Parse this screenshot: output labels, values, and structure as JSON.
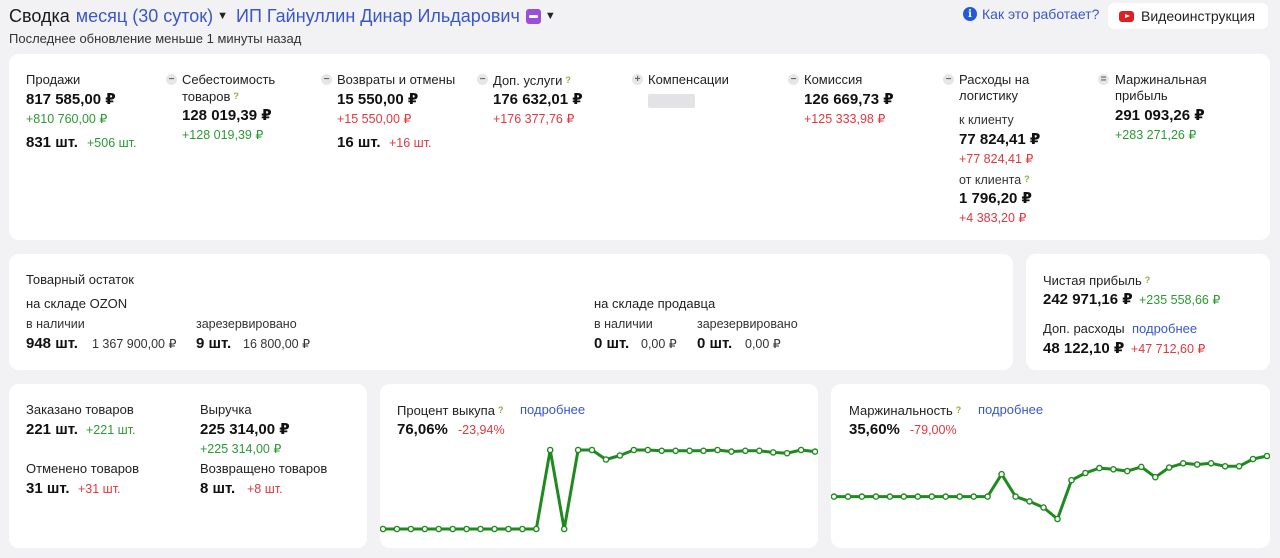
{
  "header": {
    "prefix": "Сводка",
    "period": "месяц (30 суток)",
    "shop": "ИП Гайнуллин Динар Ильдарович",
    "updated": "Последнее обновление меньше 1 минуты назад",
    "help": "Как это работает?",
    "video": "Видеоинструкция"
  },
  "summary": {
    "sales": {
      "label": "Продажи",
      "value": "817 585,00 ₽",
      "delta": "+810 760,00 ₽",
      "qty": "831 шт.",
      "qty_delta": "+506 шт."
    },
    "cost": {
      "label1": "Себестоимость",
      "label2": "товаров",
      "value": "128 019,39 ₽",
      "delta": "+128 019,39 ₽"
    },
    "returns": {
      "label": "Возвраты и отмены",
      "value": "15 550,00 ₽",
      "delta": "+15 550,00 ₽",
      "qty": "16 шт.",
      "qty_delta": "+16 шт."
    },
    "services": {
      "label": "Доп. услуги",
      "value": "176 632,01 ₽",
      "delta": "+176 377,76 ₽"
    },
    "compensation": {
      "label": "Компенсации"
    },
    "commission": {
      "label": "Комиссия",
      "value": "126 669,73 ₽",
      "delta": "+125 333,98 ₽"
    },
    "logistics": {
      "label1": "Расходы на",
      "label2": "логистику",
      "to_label": "к клиенту",
      "to_value": "77 824,41 ₽",
      "to_delta": "+77 824,41 ₽",
      "from_label": "от клиента",
      "from_value": "1 796,20 ₽",
      "from_delta": "+4 383,20 ₽"
    },
    "margin": {
      "label1": "Маржинальная",
      "label2": "прибыль",
      "value": "291 093,26 ₽",
      "delta": "+283 271,26 ₽"
    }
  },
  "stock": {
    "title": "Товарный остаток",
    "ozon": {
      "label": "на складе OZON",
      "avail_label": "в наличии",
      "avail_qty": "948 шт.",
      "avail_sum": "1 367 900,00 ₽",
      "res_label": "зарезервировано",
      "res_qty": "9 шт.",
      "res_sum": "16 800,00 ₽"
    },
    "seller": {
      "label": "на складе продавца",
      "avail_label": "в наличии",
      "avail_qty": "0 шт.",
      "avail_sum": "0,00 ₽",
      "res_label": "зарезервировано",
      "res_qty": "0 шт.",
      "res_sum": "0,00 ₽"
    }
  },
  "profit": {
    "label": "Чистая прибыль",
    "value": "242 971,16 ₽",
    "delta": "+235 558,66 ₽",
    "extra_label": "Доп. расходы",
    "extra_link": "подробнее",
    "extra_value": "48 122,10 ₽",
    "extra_delta": "+47 712,60 ₽"
  },
  "orders": {
    "ordered_label": "Заказано товаров",
    "ordered_qty": "221 шт.",
    "ordered_delta": "+221 шт.",
    "revenue_label": "Выручка",
    "revenue_value": "225 314,00 ₽",
    "revenue_delta": "+225 314,00 ₽",
    "cancelled_label": "Отменено товаров",
    "cancelled_qty": "31 шт.",
    "cancelled_delta": "+31 шт.",
    "returned_label": "Возвращено товаров",
    "returned_qty": "8 шт.",
    "returned_delta": "+8 шт."
  },
  "buyout": {
    "label": "Процент выкупа",
    "link": "подробнее",
    "value": "76,06%",
    "delta": "-23,94%"
  },
  "marginality": {
    "label": "Маржинальность",
    "link": "подробнее",
    "value": "35,60%",
    "delta": "-79,00%"
  },
  "colors": {
    "accent": "#3a57c7",
    "positive": "#2a9a32",
    "negative": "#e0383e",
    "line": "#1f8a1f"
  },
  "chart_data": [
    {
      "type": "line",
      "series": [
        {
          "values": [
            0,
            0,
            0,
            0,
            0,
            0,
            0,
            0,
            0,
            0,
            0,
            0,
            100,
            0,
            100,
            100,
            88,
            93,
            100,
            100,
            99,
            99,
            99,
            99,
            100,
            98,
            99,
            99,
            97,
            96,
            100,
            98
          ]
        }
      ]
    },
    {
      "type": "line",
      "series": [
        {
          "values": [
            0,
            0,
            0,
            0,
            0,
            0,
            0,
            0,
            0,
            0,
            0,
            0,
            37,
            0,
            -8,
            -18,
            -37,
            27,
            39,
            47,
            45,
            42,
            49,
            32,
            48,
            55,
            53,
            55,
            50,
            50,
            62,
            67
          ]
        }
      ]
    }
  ]
}
